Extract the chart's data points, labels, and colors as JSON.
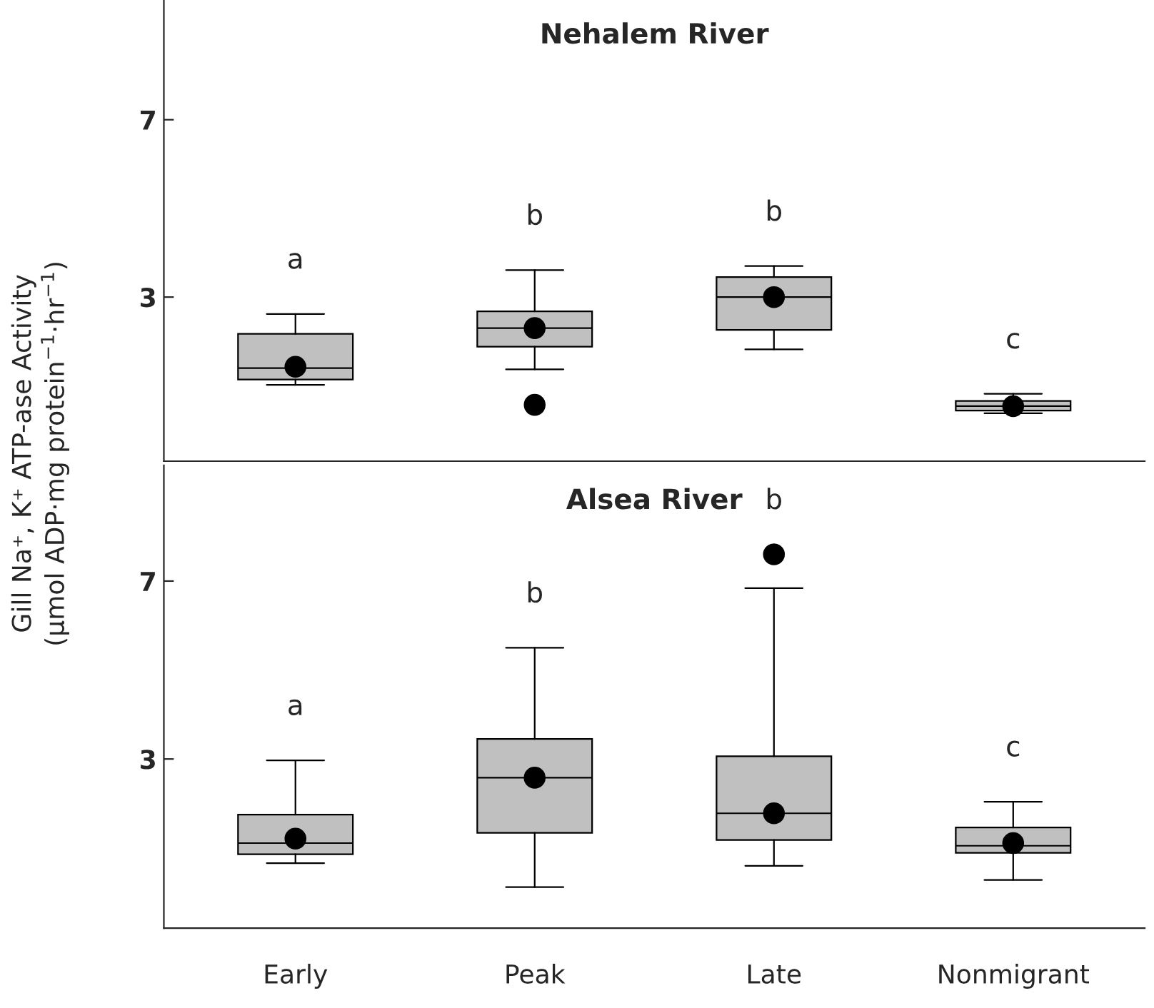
{
  "chart_data": [
    {
      "type": "box",
      "title": "Nehalem River",
      "ylabel": "Gill Na⁺, K⁺ ATP-ase Activity\n(µmol ADP·mg protein$^{−1}$·hr$^{−1}$)",
      "categories": [
        null,
        null,
        null,
        null
      ],
      "ylim": [
        -0.7,
        9.7
      ],
      "yticks": [
        3,
        7
      ],
      "tick_labels": "y",
      "grid": false,
      "color": "#c0c0c0",
      "boxes": [
        {
          "low": 1.02,
          "q1": 1.14,
          "median": 1.4,
          "q3": 2.17,
          "high": 2.62,
          "mean": 1.43
        },
        {
          "low": 1.37,
          "q1": 1.88,
          "median": 2.3,
          "q3": 2.68,
          "high": 3.61,
          "mean": 2.3,
          "outliers": [
            0.57
          ]
        },
        {
          "low": 1.82,
          "q1": 2.26,
          "median": 3.0,
          "q3": 3.45,
          "high": 3.7,
          "mean": 3.0
        },
        {
          "low": 0.38,
          "q1": 0.44,
          "median": 0.54,
          "q3": 0.66,
          "high": 0.82,
          "mean": 0.54
        }
      ],
      "annotations": [
        "a",
        "b",
        "b",
        "c"
      ]
    },
    {
      "type": "box",
      "title": "Alsea River",
      "categories": [
        "Early",
        "Peak",
        "Late",
        "Nonmigrant"
      ],
      "ylim": [
        -0.8,
        9.6
      ],
      "yticks": [
        3,
        7
      ],
      "grid": false,
      "color": "#c0c0c0",
      "boxes": [
        {
          "low": 0.66,
          "q1": 0.86,
          "median": 1.11,
          "q3": 1.75,
          "high": 2.97,
          "mean": 1.21
        },
        {
          "low": 0.12,
          "q1": 1.34,
          "median": 2.58,
          "q3": 3.45,
          "high": 5.5,
          "mean": 2.58
        },
        {
          "low": 0.6,
          "q1": 1.18,
          "median": 1.78,
          "q3": 3.06,
          "high": 6.84,
          "mean": 1.78,
          "outliers": [
            7.6
          ]
        },
        {
          "low": 0.28,
          "q1": 0.89,
          "median": 1.05,
          "q3": 1.46,
          "high": 2.04,
          "mean": 1.11
        }
      ],
      "annotations": [
        "a",
        "b",
        "b",
        "c"
      ]
    }
  ]
}
